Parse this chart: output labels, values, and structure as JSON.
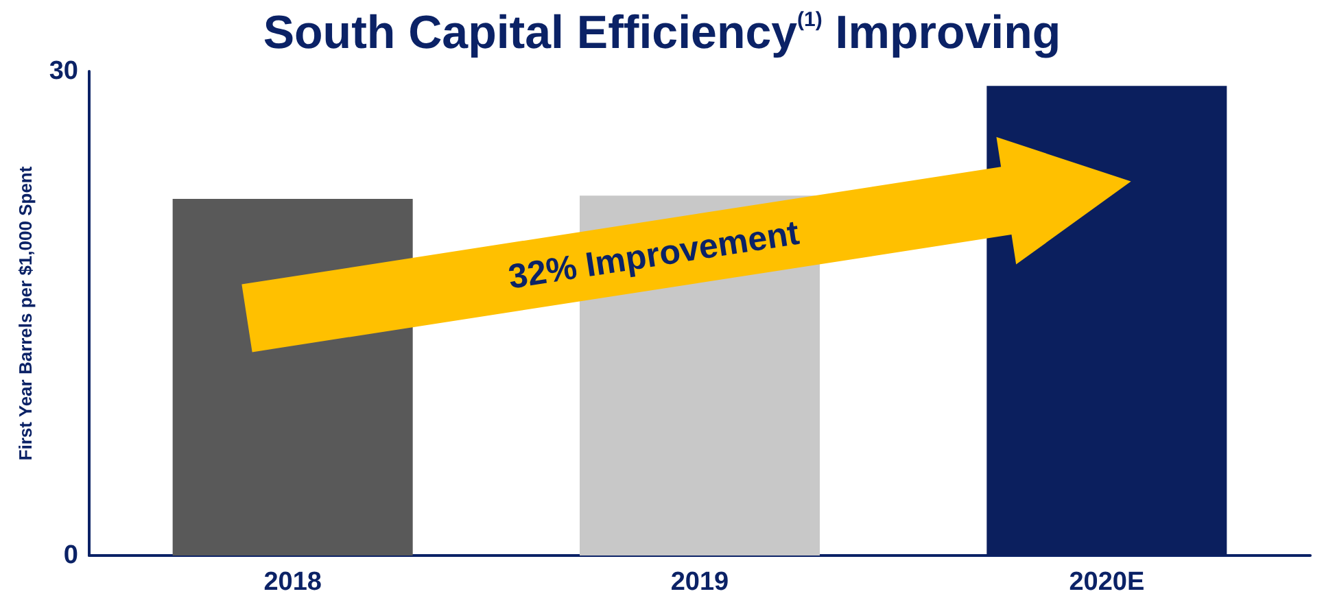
{
  "chart_data": {
    "type": "bar",
    "title": "South Capital Efficiency$^{(1)}$ Improving",
    "ylabel": "First Year Barrels per $1,000 Spent",
    "categories": [
      "2018",
      "2019",
      "2020E"
    ],
    "values": [
      22.1,
      22.3,
      29.1
    ],
    "colors": [
      "#595959",
      "#c8c8c8",
      "#0b1f5e"
    ],
    "ylim": [
      0,
      30
    ],
    "yticks": [
      0,
      30
    ],
    "grid": false,
    "annotations": [
      "32% Improvement"
    ]
  }
}
